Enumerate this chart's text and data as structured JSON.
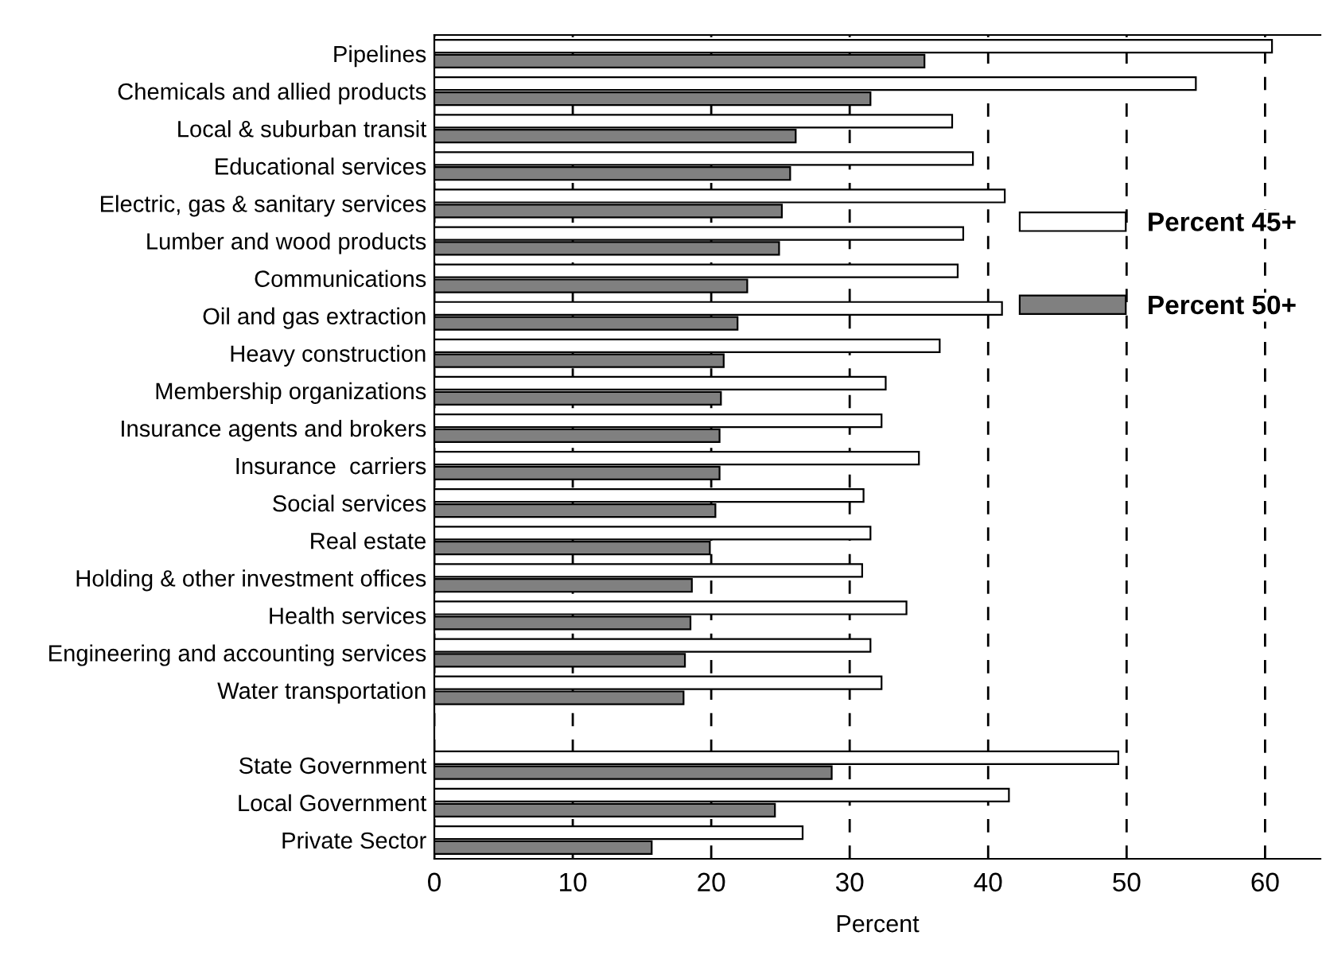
{
  "chart_data": {
    "type": "bar",
    "orientation": "horizontal",
    "xlabel": "Percent",
    "categories": [
      "Pipelines",
      "Chemicals and allied products",
      "Local & suburban transit",
      "Educational services",
      "Electric, gas & sanitary services",
      "Lumber and wood products",
      "Communications",
      "Oil and gas extraction",
      "Heavy construction",
      "Membership organizations",
      "Insurance agents and brokers",
      "Insurance  carriers",
      "Social services",
      "Real estate",
      "Holding & other investment offices",
      "Health services",
      "Engineering and accounting services",
      "Water transportation",
      null,
      "State Government",
      "Local Government",
      "Private Sector"
    ],
    "series": [
      {
        "name": "Percent 45+",
        "color": "#ffffff",
        "values": [
          60.5,
          55.0,
          37.4,
          38.9,
          41.2,
          38.2,
          37.8,
          41.0,
          36.5,
          32.6,
          32.3,
          35.0,
          31.0,
          31.5,
          30.9,
          34.1,
          31.5,
          32.3,
          null,
          49.4,
          41.5,
          26.6
        ]
      },
      {
        "name": "Percent 50+",
        "color": "#808080",
        "values": [
          35.4,
          31.5,
          26.1,
          25.7,
          25.1,
          24.9,
          22.6,
          21.9,
          20.9,
          20.7,
          20.6,
          20.6,
          20.3,
          19.9,
          18.6,
          18.5,
          18.1,
          18.0,
          null,
          28.7,
          24.6,
          15.7
        ]
      }
    ],
    "xlim": [
      0,
      64
    ],
    "xticks": [
      0,
      10,
      20,
      30,
      40,
      50,
      60
    ],
    "grid": "x",
    "legend": "right"
  }
}
